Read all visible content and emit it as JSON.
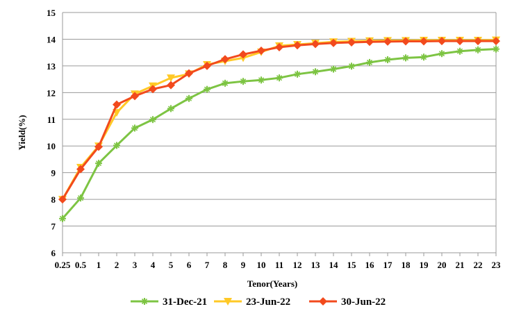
{
  "chart_data": {
    "type": "line",
    "title": "",
    "xlabel": "Tenor(Years)",
    "ylabel": "Yield(%)",
    "ylim": [
      6,
      15
    ],
    "yticks": [
      "6",
      "7",
      "8",
      "9",
      "10",
      "11",
      "12",
      "13",
      "14",
      "15"
    ],
    "grid": true,
    "legend_position": "bottom",
    "categories": [
      "0.25",
      "0.5",
      "1",
      "2",
      "3",
      "4",
      "5",
      "6",
      "7",
      "8",
      "9",
      "10",
      "11",
      "12",
      "13",
      "14",
      "15",
      "16",
      "17",
      "18",
      "19",
      "20",
      "21",
      "22",
      "23"
    ],
    "series": [
      {
        "name": "31-Dec-21",
        "color": "#7DC443",
        "marker": "star",
        "values": [
          7.28,
          8.05,
          9.35,
          10.02,
          10.67,
          10.99,
          11.4,
          11.78,
          12.12,
          12.35,
          12.42,
          12.47,
          12.55,
          12.69,
          12.78,
          12.88,
          12.99,
          13.13,
          13.23,
          13.3,
          13.33,
          13.46,
          13.55,
          13.6,
          13.63
        ]
      },
      {
        "name": "23-Jun-22",
        "color": "#FFC926",
        "marker": "triangle-down",
        "values": [
          8.0,
          9.2,
          10.0,
          11.25,
          11.95,
          12.25,
          12.55,
          12.7,
          13.05,
          13.18,
          13.3,
          13.52,
          13.75,
          13.8,
          13.85,
          13.9,
          13.92,
          13.94,
          13.95,
          13.95,
          13.96,
          13.96,
          13.96,
          13.96,
          13.97
        ]
      },
      {
        "name": "30-Jun-22",
        "color": "#F24A1D",
        "marker": "diamond",
        "values": [
          8.0,
          9.13,
          9.97,
          11.55,
          11.87,
          12.13,
          12.28,
          12.72,
          13.0,
          13.25,
          13.43,
          13.57,
          13.7,
          13.77,
          13.82,
          13.86,
          13.88,
          13.9,
          13.91,
          13.92,
          13.92,
          13.93,
          13.93,
          13.93,
          13.93
        ]
      }
    ]
  }
}
